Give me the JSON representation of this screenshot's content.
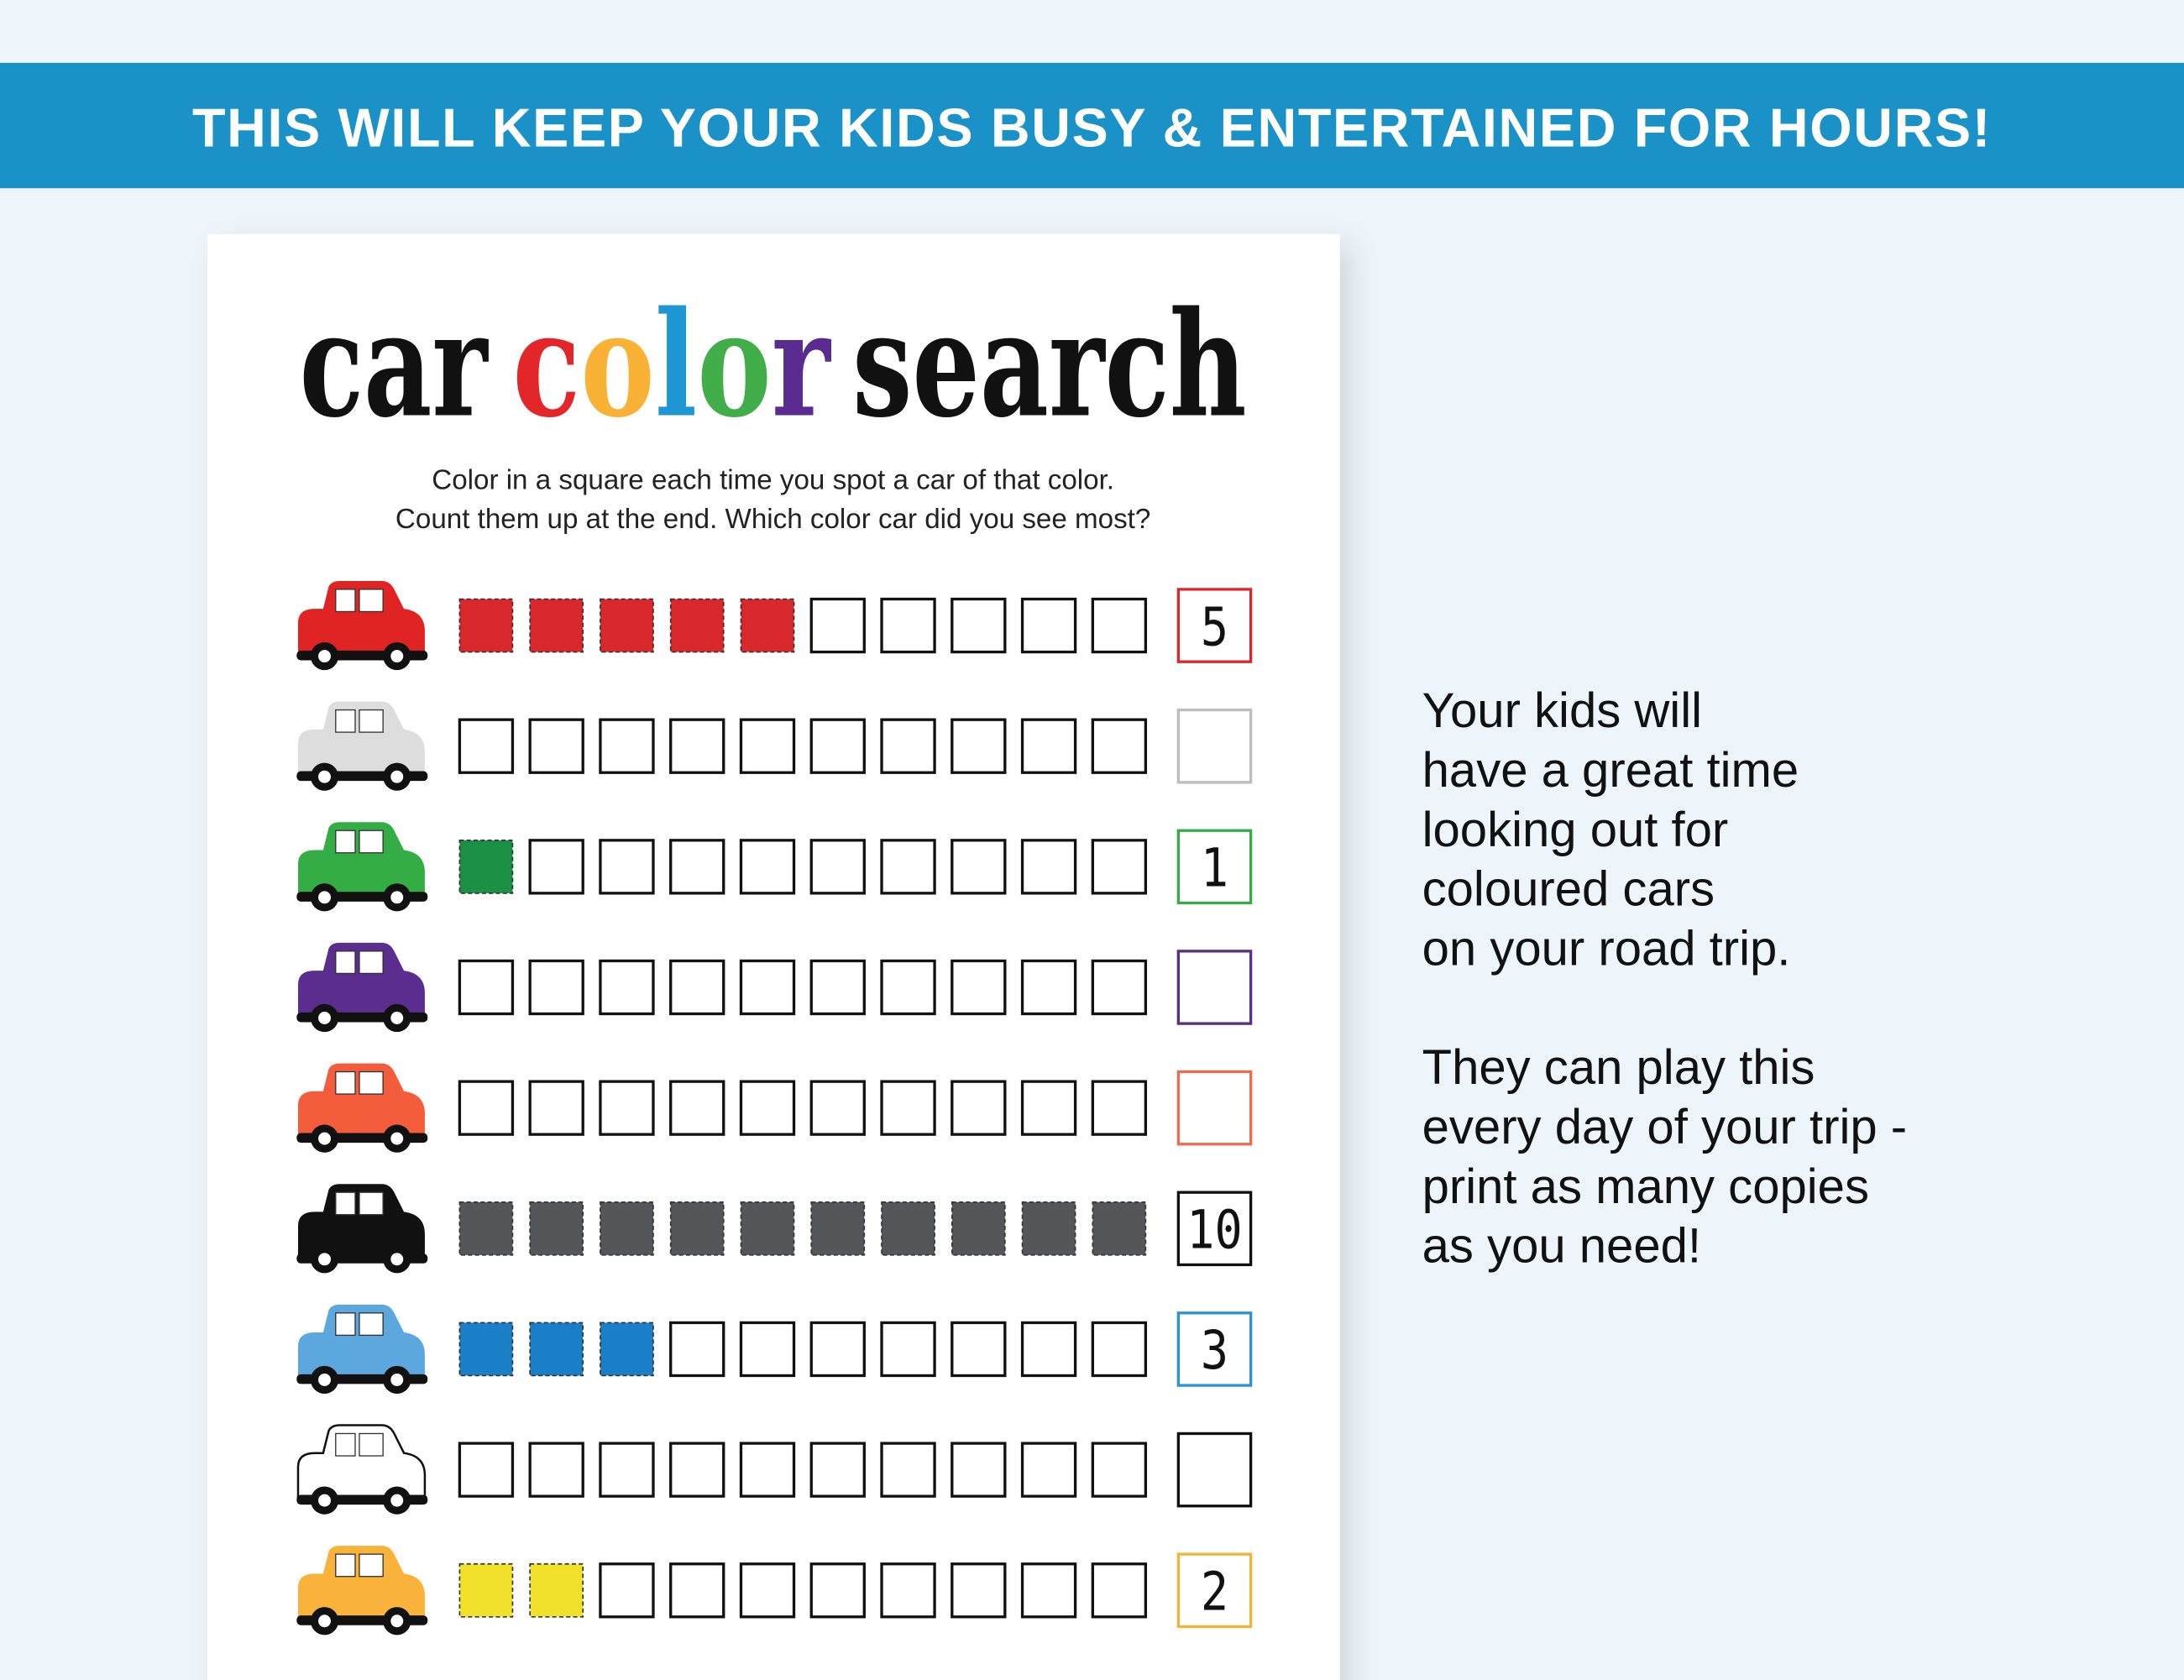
{
  "banner": "THIS WILL KEEP YOUR KIDS BUSY & ENTERTAINED FOR HOURS!",
  "worksheet": {
    "title": [
      "car",
      "color",
      "search"
    ],
    "title_letter_colors": [
      "#e3262a",
      "#f9b236",
      "#1d96d3",
      "#41ae49",
      "#5b2c8f"
    ],
    "instructions": [
      "Color in a square each time you spot a car of that color.",
      "Count them up at the end. Which color car did you see most?"
    ],
    "rows": [
      {
        "car_color": "#e02424",
        "mark_color": "#d8282b",
        "box_color": "#d8282b",
        "count": 5
      },
      {
        "car_color": "#dddddd",
        "mark_color": "#bbbbbb",
        "box_color": "#bdbdbd",
        "count": null
      },
      {
        "car_color": "#35ad45",
        "mark_color": "#1b8f43",
        "box_color": "#35ad45",
        "count": 1
      },
      {
        "car_color": "#5b2d8e",
        "mark_color": "#5b2d8e",
        "box_color": "#5b2d8e",
        "count": null
      },
      {
        "car_color": "#f45d3c",
        "mark_color": "#f45d3c",
        "box_color": "#f06a50",
        "count": null
      },
      {
        "car_color": "#111111",
        "mark_color": "#555659",
        "box_color": "#111111",
        "count": 10
      },
      {
        "car_color": "#5ba7de",
        "mark_color": "#1a7fc6",
        "box_color": "#2d93cf",
        "count": 3
      },
      {
        "car_color": "#ffffff",
        "mark_color": "#999999",
        "box_color": "#111111",
        "count": null
      },
      {
        "car_color": "#f9b33a",
        "mark_color": "#f2e12a",
        "box_color": "#f3b23a",
        "count": 2
      }
    ]
  },
  "side_text": [
    [
      "Your kids will",
      "have a great time",
      "looking out for",
      "coloured cars",
      "on your road trip."
    ],
    [
      "They can play this",
      "every day of your trip -",
      "print as many copies",
      "as you need!"
    ]
  ]
}
